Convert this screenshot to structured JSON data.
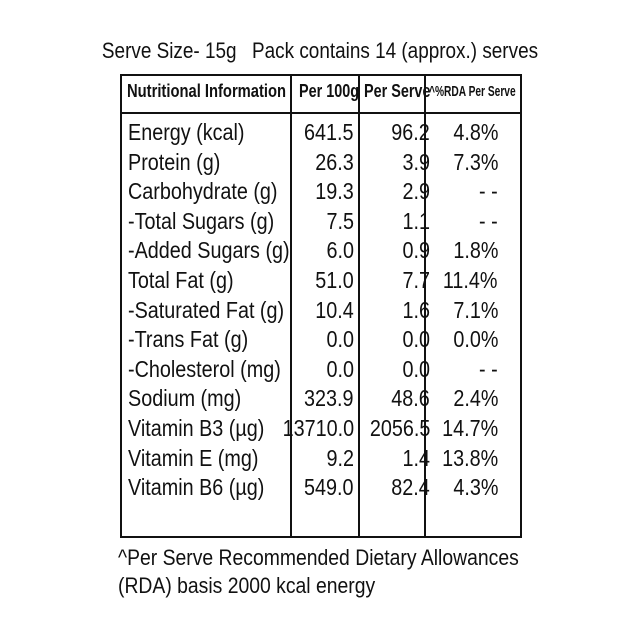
{
  "serve_size": "Serve Size- 15g",
  "pack_info": "Pack contains 14 (approx.) serves",
  "table": {
    "headers": [
      "Nutritional Information",
      "Per 100g",
      "Per Serve",
      "^%RDA Per Serve"
    ],
    "rows": [
      {
        "name": "Energy (kcal)",
        "per100": "641.5",
        "perServe": "96.2",
        "rda": "4.8%"
      },
      {
        "name": "Protein (g)",
        "per100": "26.3",
        "perServe": "3.9",
        "rda": "7.3%"
      },
      {
        "name": "Carbohydrate (g)",
        "per100": "19.3",
        "perServe": "2.9",
        "rda": "- -"
      },
      {
        "name": "-Total Sugars (g)",
        "per100": "7.5",
        "perServe": "1.1",
        "rda": "- -"
      },
      {
        "name": "-Added Sugars (g)",
        "per100": "6.0",
        "perServe": "0.9",
        "rda": "1.8%"
      },
      {
        "name": "Total Fat (g)",
        "per100": "51.0",
        "perServe": "7.7",
        "rda": "11.4%"
      },
      {
        "name": "-Saturated Fat (g)",
        "per100": "10.4",
        "perServe": "1.6",
        "rda": "7.1%"
      },
      {
        "name": "-Trans Fat (g)",
        "per100": "0.0",
        "perServe": "0.0",
        "rda": "0.0%"
      },
      {
        "name": "-Cholesterol (mg)",
        "per100": "0.0",
        "perServe": "0.0",
        "rda": "- -"
      },
      {
        "name": "Sodium (mg)",
        "per100": "323.9",
        "perServe": "48.6",
        "rda": "2.4%"
      },
      {
        "name": "Vitamin B3 (µg)",
        "per100": "13710.0",
        "perServe": "2056.5",
        "rda": "14.7%"
      },
      {
        "name": "Vitamin E (mg)",
        "per100": "9.2",
        "perServe": "1.4",
        "rda": "13.8%"
      },
      {
        "name": "Vitamin B6 (µg)",
        "per100": "549.0",
        "perServe": "82.4",
        "rda": "4.3%"
      }
    ]
  },
  "footnote": {
    "line1": "^Per Serve Recommended Dietary Allowances",
    "line2": "(RDA) basis 2000 kcal energy"
  }
}
